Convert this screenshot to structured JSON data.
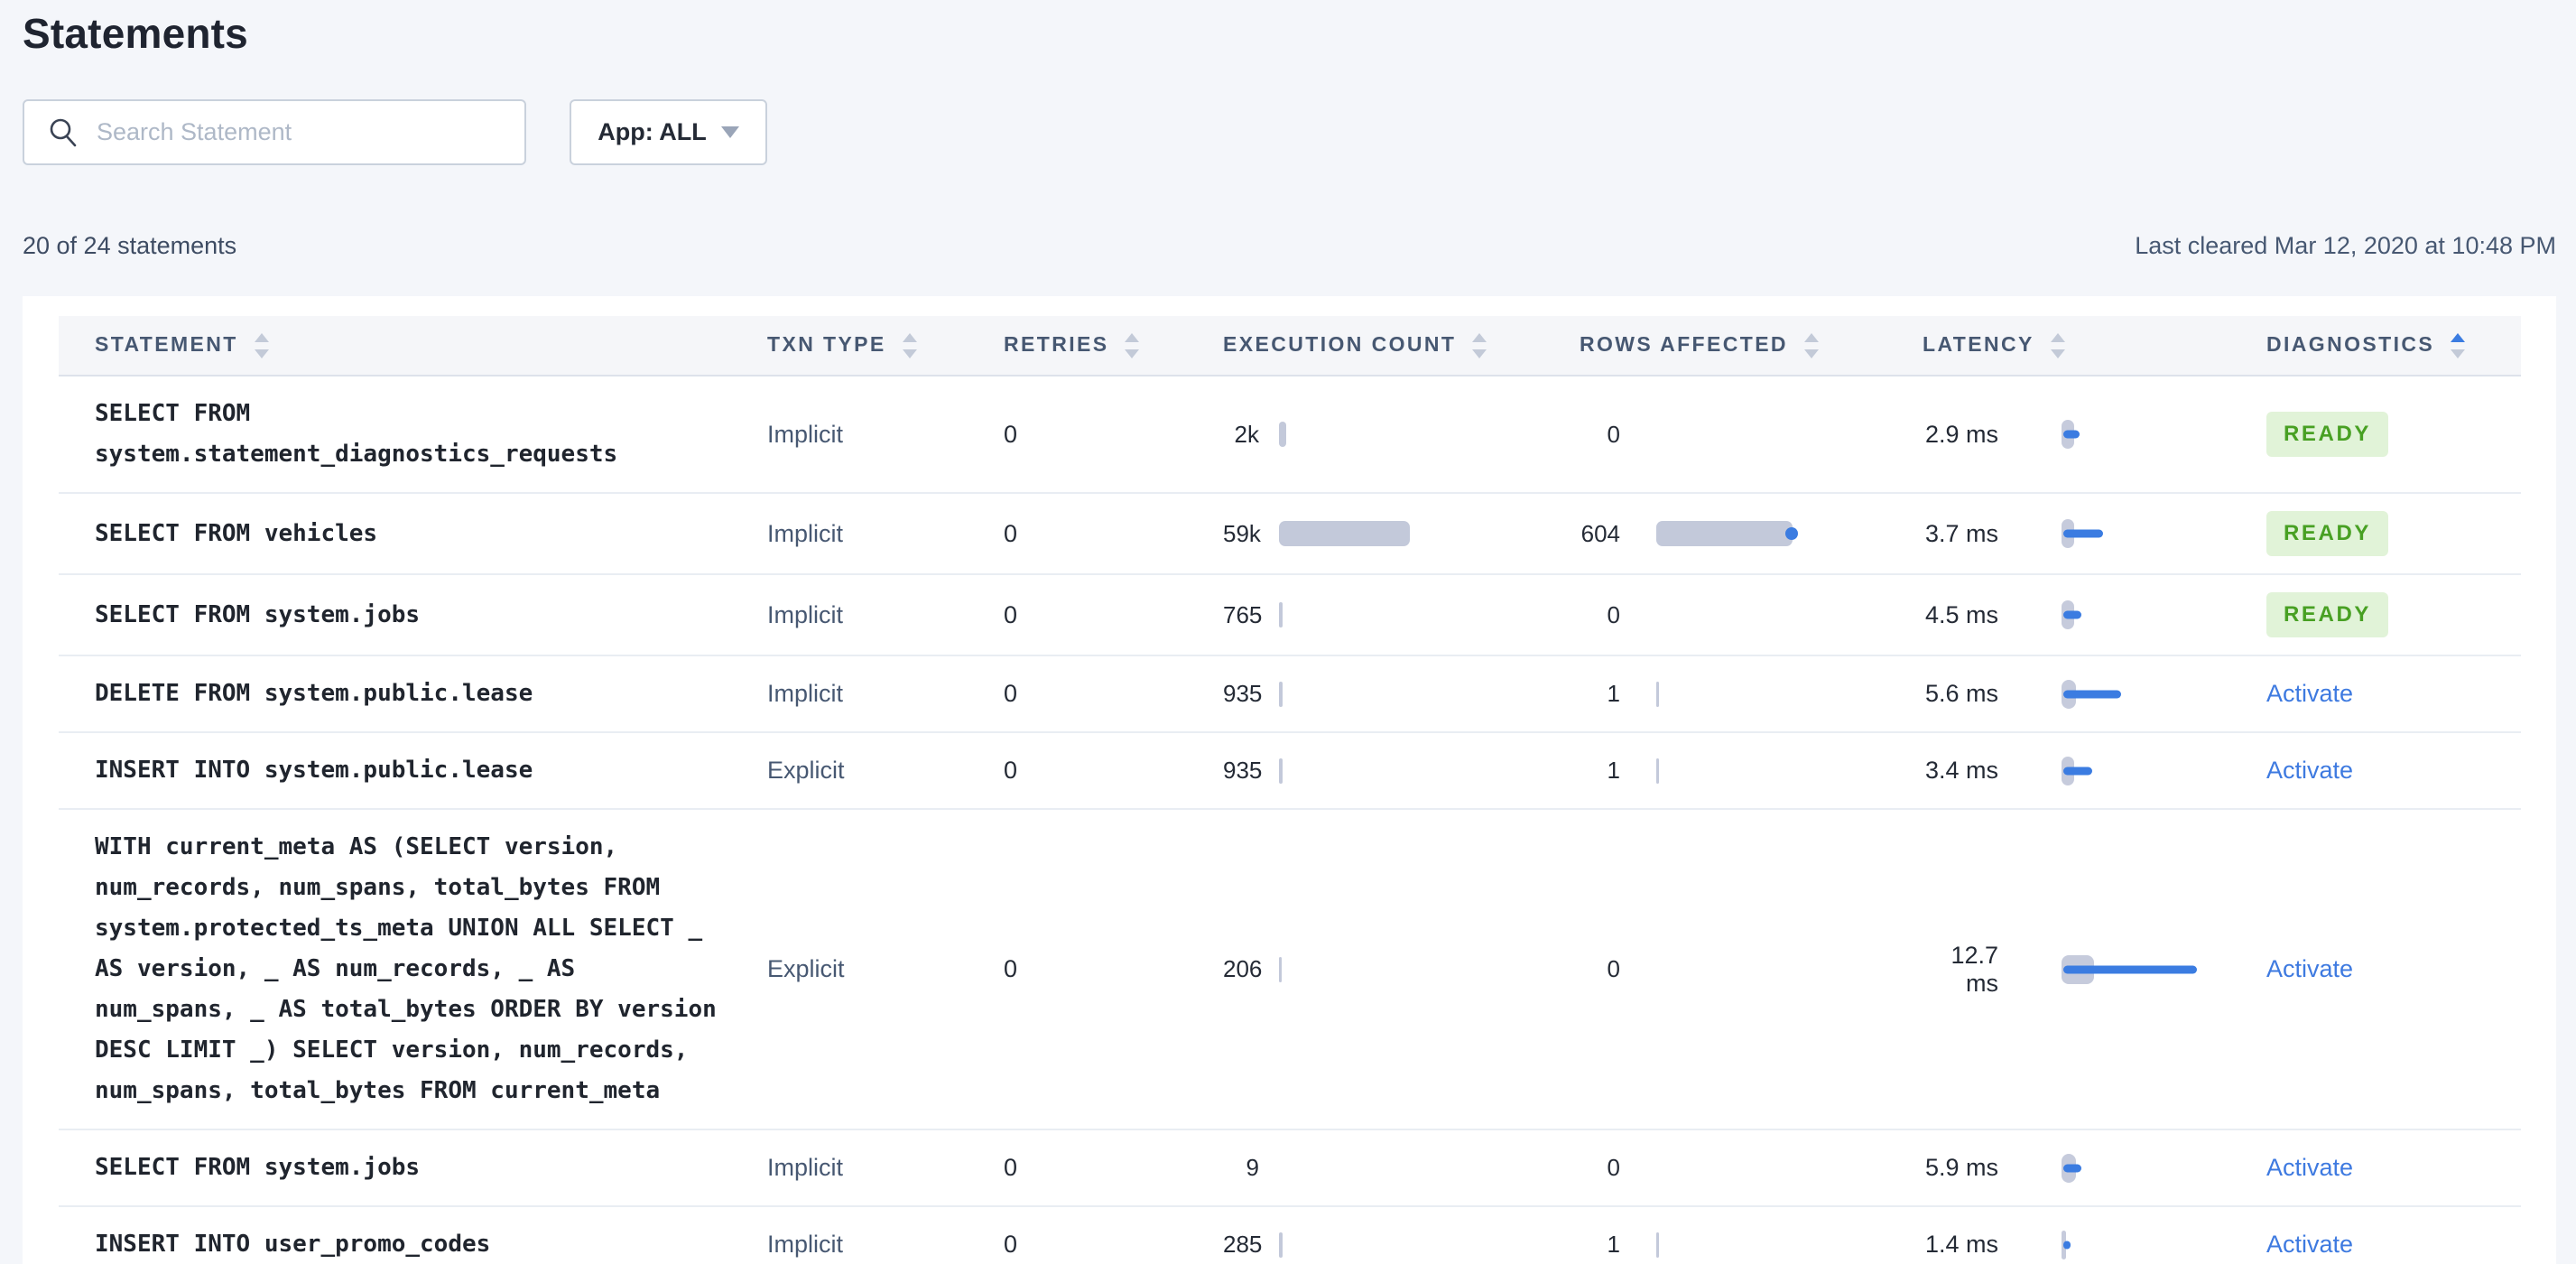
{
  "header": {
    "title": "Statements"
  },
  "filters": {
    "search_placeholder": "Search Statement",
    "app_filter_label": "App: ALL"
  },
  "summary": {
    "count_text": "20 of 24 statements",
    "last_cleared": "Last cleared Mar 12, 2020 at 10:48 PM"
  },
  "table": {
    "columns": [
      {
        "label": "STATEMENT",
        "sort": null
      },
      {
        "label": "TXN TYPE",
        "sort": null
      },
      {
        "label": "RETRIES",
        "sort": null
      },
      {
        "label": "EXECUTION COUNT",
        "sort": null
      },
      {
        "label": "ROWS AFFECTED",
        "sort": null
      },
      {
        "label": "LATENCY",
        "sort": null
      },
      {
        "label": "DIAGNOSTICS",
        "sort": "asc"
      }
    ],
    "rows": [
      {
        "statement": "SELECT FROM system.statement_diagnostics_requests",
        "txn_type": "Implicit",
        "retries": "0",
        "execution_count": "2k",
        "exec_bar": 8,
        "rows_affected": "0",
        "rows_bar": 0,
        "rows_dot": false,
        "latency": "2.9 ms",
        "latency_tick": 14,
        "latency_bar": 18,
        "diagnostics": "READY",
        "diagnostics_type": "ready"
      },
      {
        "statement": "SELECT FROM vehicles",
        "txn_type": "Implicit",
        "retries": "0",
        "execution_count": "59k",
        "exec_bar": 145,
        "rows_affected": "604",
        "rows_bar": 151,
        "rows_dot": true,
        "latency": "3.7 ms",
        "latency_tick": 14,
        "latency_bar": 44,
        "diagnostics": "READY",
        "diagnostics_type": "ready"
      },
      {
        "statement": "SELECT FROM system.jobs",
        "txn_type": "Implicit",
        "retries": "0",
        "execution_count": "765",
        "exec_bar": 4,
        "rows_affected": "0",
        "rows_bar": 0,
        "rows_dot": false,
        "latency": "4.5 ms",
        "latency_tick": 14,
        "latency_bar": 20,
        "diagnostics": "READY",
        "diagnostics_type": "ready"
      },
      {
        "statement": "DELETE FROM system.public.lease",
        "txn_type": "Implicit",
        "retries": "0",
        "execution_count": "935",
        "exec_bar": 4,
        "rows_affected": "1",
        "rows_bar": 3,
        "rows_dot": false,
        "latency": "5.6 ms",
        "latency_tick": 16,
        "latency_bar": 64,
        "diagnostics": "Activate",
        "diagnostics_type": "activate"
      },
      {
        "statement": "INSERT INTO system.public.lease",
        "txn_type": "Explicit",
        "retries": "0",
        "execution_count": "935",
        "exec_bar": 4,
        "rows_affected": "1",
        "rows_bar": 3,
        "rows_dot": false,
        "latency": "3.4 ms",
        "latency_tick": 14,
        "latency_bar": 32,
        "diagnostics": "Activate",
        "diagnostics_type": "activate"
      },
      {
        "statement": "WITH current_meta AS (SELECT version, num_records, num_spans, total_bytes FROM system.protected_ts_meta UNION ALL SELECT _ AS version, _ AS num_records, _ AS num_spans, _ AS total_bytes ORDER BY version DESC LIMIT _) SELECT version, num_records, num_spans, total_bytes FROM current_meta",
        "txn_type": "Explicit",
        "retries": "0",
        "execution_count": "206",
        "exec_bar": 3,
        "rows_affected": "0",
        "rows_bar": 0,
        "rows_dot": false,
        "latency": "12.7 ms",
        "latency_tick": 36,
        "latency_bar": 148,
        "diagnostics": "Activate",
        "diagnostics_type": "activate"
      },
      {
        "statement": "SELECT FROM system.jobs",
        "txn_type": "Implicit",
        "retries": "0",
        "execution_count": "9",
        "exec_bar": 0,
        "rows_affected": "0",
        "rows_bar": 0,
        "rows_dot": false,
        "latency": "5.9 ms",
        "latency_tick": 16,
        "latency_bar": 20,
        "diagnostics": "Activate",
        "diagnostics_type": "activate"
      },
      {
        "statement": "INSERT INTO user_promo_codes",
        "txn_type": "Implicit",
        "retries": "0",
        "execution_count": "285",
        "exec_bar": 4,
        "rows_affected": "1",
        "rows_bar": 3,
        "rows_dot": false,
        "latency": "1.4 ms",
        "latency_tick": 5,
        "latency_bar": 8,
        "diagnostics": "Activate",
        "diagnostics_type": "activate"
      }
    ]
  },
  "colors": {
    "accent_blue": "#3B7CE1",
    "bar_gray": "#C3C9DA",
    "badge_green_bg": "#E1F3D8",
    "badge_green_text": "#48A023",
    "page_bg": "#F4F6FA"
  }
}
